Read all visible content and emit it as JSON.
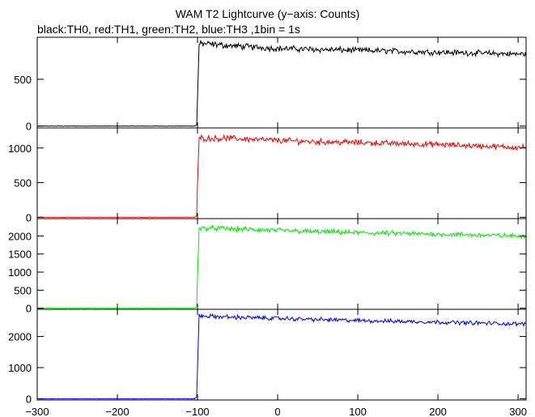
{
  "chart_data": {
    "type": "line",
    "title": "WAM T2 Lightcurve (y−axis: Counts)",
    "subtitle": "black:TH0, red:TH1, green:TH2, blue:TH3 ,1bin = 1s",
    "xlabel": "",
    "ylabel": "",
    "xlim": [
      -300,
      310
    ],
    "x_ticks": [
      "−300",
      "−200",
      "−100",
      "0",
      "100",
      "200",
      "300"
    ],
    "x_tick_values": [
      -300,
      -200,
      -100,
      0,
      100,
      200,
      300
    ],
    "grid": false,
    "panels": [
      {
        "series": "TH0",
        "color": "#000000",
        "ylim": [
          -20,
          950
        ],
        "y_ticks": [
          "0",
          "500"
        ],
        "y_tick_values": [
          0,
          500
        ],
        "x": [
          -300,
          -104,
          -101,
          -100,
          -98,
          -90,
          -60,
          0,
          50,
          100,
          200,
          300,
          310
        ],
        "y": [
          0,
          0,
          10,
          300,
          880,
          880,
          860,
          830,
          820,
          810,
          790,
          770,
          770
        ]
      },
      {
        "series": "TH1",
        "color": "#ff0000",
        "ylim": [
          -20,
          1290
        ],
        "y_ticks": [
          "0",
          "500",
          "1000"
        ],
        "y_tick_values": [
          0,
          500,
          1000
        ],
        "x": [
          -300,
          -104,
          -101,
          -100,
          -98,
          -90,
          -60,
          0,
          50,
          100,
          200,
          300,
          310
        ],
        "y": [
          0,
          0,
          20,
          500,
          1150,
          1140,
          1140,
          1110,
          1090,
          1080,
          1050,
          1010,
          1010
        ]
      },
      {
        "series": "TH2",
        "color": "#00ee00",
        "ylim": [
          -30,
          2480
        ],
        "y_ticks": [
          "0",
          "500",
          "1000",
          "1500",
          "2000"
        ],
        "y_tick_values": [
          0,
          500,
          1000,
          1500,
          2000
        ],
        "x": [
          -300,
          -104,
          -101,
          -100,
          -98,
          -90,
          -60,
          0,
          50,
          100,
          200,
          300,
          310
        ],
        "y": [
          0,
          0,
          40,
          900,
          2200,
          2220,
          2200,
          2150,
          2120,
          2090,
          2050,
          2000,
          2000
        ]
      },
      {
        "series": "TH3",
        "color": "#0000ff",
        "ylim": [
          -40,
          2870
        ],
        "y_ticks": [
          "0",
          "1000",
          "2000"
        ],
        "y_tick_values": [
          0,
          1000,
          2000
        ],
        "x": [
          -300,
          -104,
          -101,
          -100,
          -98,
          -90,
          -60,
          0,
          50,
          100,
          200,
          300,
          310
        ],
        "y": [
          0,
          0,
          50,
          1000,
          2660,
          2650,
          2620,
          2580,
          2540,
          2510,
          2460,
          2400,
          2400
        ]
      }
    ],
    "noise_amplitude": [
      0.03,
      0.03,
      0.025,
      0.02
    ]
  }
}
